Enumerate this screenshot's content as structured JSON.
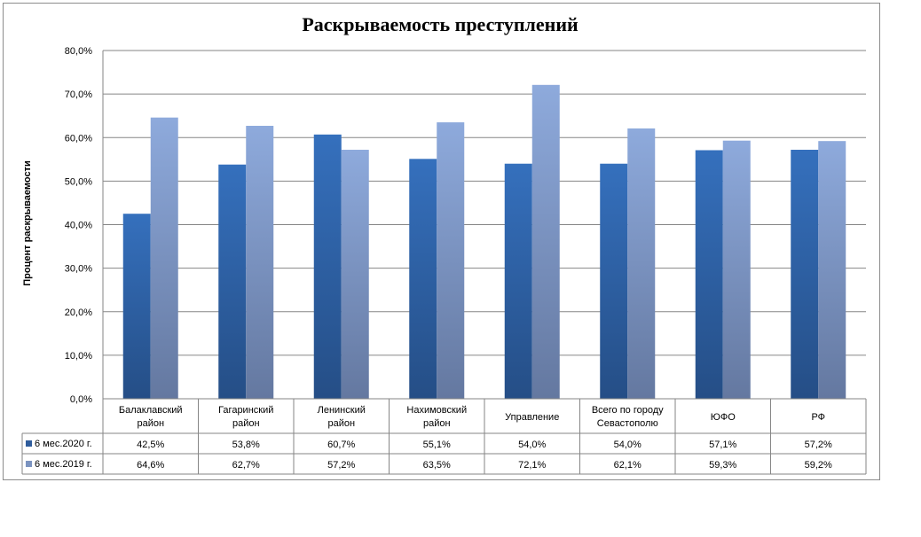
{
  "chart_data": {
    "type": "bar",
    "title": "Раскрываемость преступлений",
    "ylabel": "Процент раскрываемости",
    "xlabel": "",
    "ylim": [
      0,
      80
    ],
    "yticks": [
      "0,0%",
      "10,0%",
      "20,0%",
      "30,0%",
      "40,0%",
      "50,0%",
      "60,0%",
      "70,0%",
      "80,0%"
    ],
    "grid": true,
    "legend": "data-table-left",
    "categories": [
      [
        "Балаклавский",
        "район"
      ],
      [
        "Гагаринский",
        "район"
      ],
      [
        "Ленинский",
        "район"
      ],
      [
        "Нахимовский",
        "район"
      ],
      [
        "Управление"
      ],
      [
        "Всего по городу",
        "Севастополю"
      ],
      [
        "ЮФО"
      ],
      [
        "РФ"
      ]
    ],
    "series": [
      {
        "name": "6 мес.2020 г.",
        "color": "#2f62a8",
        "values": [
          42.5,
          53.8,
          60.7,
          55.1,
          54.0,
          54.0,
          57.1,
          57.2
        ],
        "labels": [
          "42,5%",
          "53,8%",
          "60,7%",
          "55,1%",
          "54,0%",
          "54,0%",
          "57,1%",
          "57,2%"
        ]
      },
      {
        "name": "6 мес.2019 г.",
        "color": "#8aa6d6",
        "values": [
          64.6,
          62.7,
          57.2,
          63.5,
          72.1,
          62.1,
          59.3,
          59.2
        ],
        "labels": [
          "64,6%",
          "62,7%",
          "57,2%",
          "63,5%",
          "72,1%",
          "62,1%",
          "59,3%",
          "59,2%"
        ]
      }
    ]
  }
}
